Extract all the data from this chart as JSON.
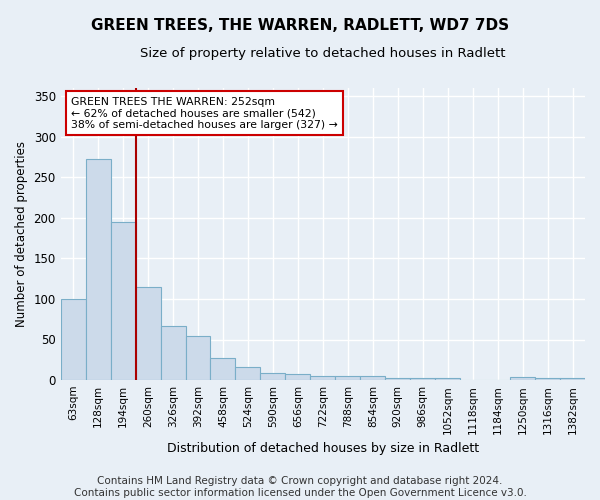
{
  "title": "GREEN TREES, THE WARREN, RADLETT, WD7 7DS",
  "subtitle": "Size of property relative to detached houses in Radlett",
  "xlabel": "Distribution of detached houses by size in Radlett",
  "ylabel": "Number of detached properties",
  "categories": [
    "63sqm",
    "128sqm",
    "194sqm",
    "260sqm",
    "326sqm",
    "392sqm",
    "458sqm",
    "524sqm",
    "590sqm",
    "656sqm",
    "722sqm",
    "788sqm",
    "854sqm",
    "920sqm",
    "986sqm",
    "1052sqm",
    "1118sqm",
    "1184sqm",
    "1250sqm",
    "1316sqm",
    "1382sqm"
  ],
  "values": [
    100,
    272,
    195,
    115,
    67,
    54,
    27,
    16,
    9,
    8,
    5,
    5,
    5,
    3,
    3,
    3,
    0,
    0,
    4,
    3,
    2
  ],
  "bar_color": "#ccdaea",
  "bar_edge_color": "#7aaec8",
  "vline_color": "#aa0000",
  "vline_x_index": 3,
  "annotation_text": "GREEN TREES THE WARREN: 252sqm\n← 62% of detached houses are smaller (542)\n38% of semi-detached houses are larger (327) →",
  "annotation_box_facecolor": "#ffffff",
  "annotation_box_edgecolor": "#cc0000",
  "ylim": [
    0,
    360
  ],
  "yticks": [
    0,
    50,
    100,
    150,
    200,
    250,
    300,
    350
  ],
  "footer": "Contains HM Land Registry data © Crown copyright and database right 2024.\nContains public sector information licensed under the Open Government Licence v3.0.",
  "background_color": "#e8eff6",
  "plot_background": "#e8eff6",
  "grid_color": "#ffffff",
  "title_fontsize": 11,
  "subtitle_fontsize": 9.5,
  "footer_fontsize": 7.5
}
